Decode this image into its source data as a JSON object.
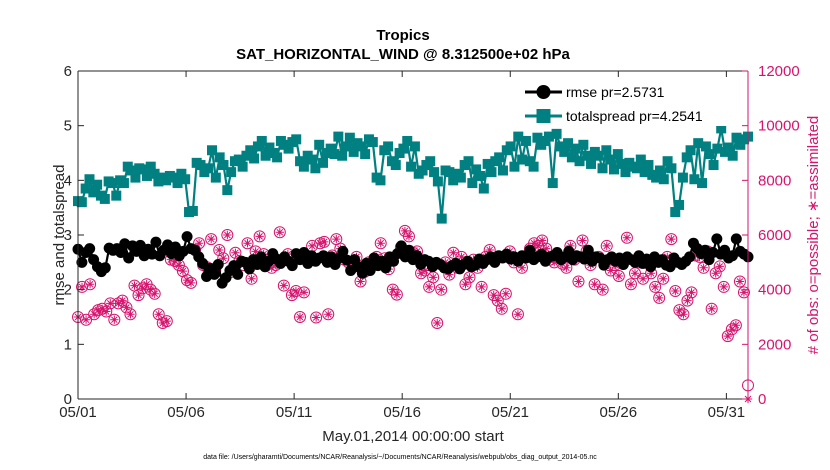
{
  "chart_data": {
    "type": "line",
    "title": "Tropics",
    "subtitle": "SAT_HORIZONTAL_WIND @ 8.312500e+02 hPa",
    "xlabel": "May.01,2014 00:00:00 start",
    "ylabel": "rmse and totalspread",
    "y2label": "# of obs: o=possible; ∗=assimilated",
    "footer": "data file: /Users/gharamti/Documents/NCAR/Reanalysis/~/Documents/NCAR/Reanalysis/webpub/obs_diag_output_2014-05.nc",
    "xlim": [
      0,
      31
    ],
    "ylim": [
      0,
      6
    ],
    "y2lim": [
      0,
      12000
    ],
    "x_ticks": [
      {
        "value": 0,
        "label": "05/01"
      },
      {
        "value": 5,
        "label": "05/06"
      },
      {
        "value": 10,
        "label": "05/11"
      },
      {
        "value": 15,
        "label": "05/16"
      },
      {
        "value": 20,
        "label": "05/21"
      },
      {
        "value": 25,
        "label": "05/26"
      },
      {
        "value": 30,
        "label": "05/31"
      }
    ],
    "y_ticks": [
      {
        "value": 0,
        "label": "0"
      },
      {
        "value": 1,
        "label": "1"
      },
      {
        "value": 2,
        "label": "2"
      },
      {
        "value": 3,
        "label": "3"
      },
      {
        "value": 4,
        "label": "4"
      },
      {
        "value": 5,
        "label": "5"
      },
      {
        "value": 6,
        "label": "6"
      }
    ],
    "y2_ticks": [
      {
        "value": 0,
        "label": "0"
      },
      {
        "value": 2000,
        "label": "2000"
      },
      {
        "value": 4000,
        "label": "4000"
      },
      {
        "value": 6000,
        "label": "6000"
      },
      {
        "value": 8000,
        "label": "8000"
      },
      {
        "value": 10000,
        "label": "10000"
      },
      {
        "value": 12000,
        "label": "12000"
      }
    ],
    "legend_position": "top-right",
    "colors": {
      "rmse": "#000000",
      "totalspread": "#008080",
      "obs": "#d6136d",
      "axis": "#262626",
      "grid": "#dcdcdc"
    },
    "series": [
      {
        "name": "rmse pr=2.5731",
        "marker": "filled-circle",
        "axis": "left",
        "values": [
          2.74,
          2.5,
          2.68,
          2.75,
          2.55,
          2.42,
          2.33,
          2.4,
          2.76,
          2.72,
          2.75,
          2.68,
          2.84,
          2.58,
          2.8,
          2.7,
          2.81,
          2.62,
          2.74,
          2.65,
          2.87,
          2.62,
          2.72,
          2.82,
          2.66,
          2.78,
          2.62,
          2.7,
          2.97,
          2.75,
          2.72,
          2.6,
          2.48,
          2.24,
          2.39,
          2.28,
          2.46,
          2.12,
          2.22,
          2.35,
          2.44,
          2.28,
          2.52,
          2.5,
          2.38,
          2.55,
          2.46,
          2.6,
          2.42,
          2.52,
          2.66,
          2.56,
          2.48,
          2.6,
          2.52,
          2.44,
          2.66,
          2.55,
          2.68,
          2.48,
          2.62,
          2.52,
          2.58,
          2.62,
          2.5,
          2.6,
          2.46,
          2.58,
          2.7,
          2.54,
          2.35,
          2.55,
          2.42,
          2.3,
          2.48,
          2.35,
          2.58,
          2.44,
          2.52,
          2.4,
          2.6,
          2.52,
          2.66,
          2.8,
          2.6,
          2.72,
          2.55,
          2.62,
          2.46,
          2.55,
          2.52,
          2.42,
          2.5,
          2.46,
          2.4,
          2.38,
          2.44,
          2.48,
          2.38,
          2.46,
          2.52,
          2.42,
          2.45,
          2.56,
          2.48,
          2.55,
          2.6,
          2.5,
          2.62,
          2.58,
          2.65,
          2.56,
          2.6,
          2.52,
          2.62,
          2.58,
          2.72,
          2.55,
          2.6,
          2.65,
          2.52,
          2.6,
          2.62,
          2.68,
          2.55,
          2.6,
          2.7,
          2.55,
          2.62,
          2.6,
          2.56,
          2.72,
          2.52,
          2.6,
          2.58,
          2.45,
          2.55,
          2.6,
          2.52,
          2.58,
          2.46,
          2.6,
          2.55,
          2.5,
          2.62,
          2.48,
          2.56,
          2.42,
          2.6,
          2.5,
          2.55,
          2.45,
          2.42,
          2.58,
          2.5,
          2.46,
          2.52,
          2.6,
          2.85,
          2.75,
          2.66,
          2.72,
          2.55,
          2.68,
          2.93,
          2.65,
          2.72,
          2.58,
          2.62,
          2.93,
          2.7,
          2.65,
          2.6
        ]
      },
      {
        "name": "totalspread pr=4.2541",
        "marker": "filled-square",
        "axis": "left",
        "values": [
          3.62,
          3.6,
          3.85,
          4.02,
          3.78,
          3.92,
          3.72,
          3.66,
          3.98,
          3.95,
          3.72,
          4.0,
          3.95,
          4.25,
          4.18,
          4.05,
          4.22,
          4.2,
          4.08,
          4.25,
          4.12,
          3.98,
          4.05,
          4.0,
          4.08,
          4.05,
          3.95,
          4.12,
          4.02,
          3.42,
          3.44,
          4.32,
          4.28,
          4.15,
          4.22,
          4.55,
          4.05,
          4.42,
          4.28,
          3.82,
          4.15,
          4.35,
          4.38,
          4.25,
          4.45,
          4.55,
          4.4,
          4.62,
          4.72,
          4.45,
          4.6,
          4.5,
          4.42,
          4.72,
          4.65,
          4.58,
          4.7,
          4.75,
          4.35,
          4.25,
          4.45,
          4.38,
          4.22,
          4.65,
          4.32,
          4.5,
          4.58,
          4.48,
          4.8,
          4.45,
          4.62,
          4.78,
          4.52,
          4.68,
          4.62,
          4.48,
          4.75,
          4.7,
          4.05,
          4.0,
          4.55,
          4.62,
          4.35,
          4.28,
          4.5,
          4.58,
          4.72,
          4.25,
          4.62,
          4.12,
          4.18,
          4.28,
          4.35,
          4.15,
          3.98,
          3.3,
          4.18,
          4.15,
          4.0,
          4.12,
          4.05,
          4.28,
          4.35,
          3.95,
          4.2,
          4.08,
          3.85,
          4.3,
          4.15,
          4.35,
          4.42,
          4.18,
          4.55,
          4.62,
          4.25,
          4.8,
          4.38,
          4.72,
          4.35,
          4.25,
          4.78,
          4.65,
          4.72,
          4.8,
          3.95,
          4.85,
          4.62,
          4.52,
          4.68,
          4.42,
          4.58,
          4.35,
          4.65,
          4.45,
          4.3,
          4.52,
          4.45,
          4.22,
          4.55,
          4.38,
          4.2,
          4.48,
          4.3,
          4.15,
          4.32,
          4.25,
          4.22,
          4.38,
          4.15,
          4.28,
          4.1,
          4.05,
          4.18,
          4.02,
          4.35,
          4.22,
          3.42,
          3.55,
          4.05,
          4.42,
          4.55,
          4.02,
          4.68,
          3.95,
          4.62,
          4.48,
          4.28,
          4.58,
          4.95,
          4.52,
          4.6,
          4.45,
          4.78,
          4.65,
          4.75,
          4.8
        ]
      }
    ],
    "obs_series": [
      {
        "name": "possible",
        "marker": "open-circle",
        "axis": "right",
        "values": [
          3000,
          4100,
          2900,
          4200,
          3100,
          3250,
          3300,
          3200,
          3500,
          2900,
          3500,
          3600,
          3350,
          3100,
          4150,
          3800,
          4050,
          4200,
          4000,
          3850,
          3100,
          2780,
          2850,
          5100,
          5050,
          4900,
          4680,
          4350,
          4250,
          5450,
          5700,
          4900,
          4820,
          5850,
          4700,
          5450,
          5150,
          6000,
          4650,
          5350,
          5050,
          4900,
          5700,
          4400,
          5400,
          5950,
          5300,
          5100,
          4800,
          4900,
          6100,
          4150,
          5300,
          3800,
          3950,
          3000,
          3900,
          5150,
          5600,
          2980,
          5700,
          5750,
          3100,
          5250,
          5850,
          5500,
          5100,
          5000,
          4800,
          5200,
          4300,
          4650,
          5000,
          4900,
          5200,
          5700,
          5150,
          4750,
          4000,
          3820,
          5550,
          6150,
          5950,
          5350,
          5400,
          4600,
          4700,
          4100,
          4450,
          2780,
          4000,
          5000,
          4550,
          5350,
          4800,
          5200,
          4200,
          4450,
          5100,
          4800,
          4100,
          5200,
          5450,
          3800,
          3600,
          3300,
          3850,
          5400,
          5000,
          3100,
          4800,
          5200,
          5500,
          5700,
          5600,
          5800,
          5500,
          5100,
          5000,
          5200,
          4950,
          4800,
          5600,
          5100,
          4300,
          5800,
          5400,
          4900,
          4200,
          5200,
          4000,
          5600,
          4700,
          4900,
          4500,
          4950,
          5900,
          4200,
          4600,
          5000,
          4400,
          5000,
          4600,
          4100,
          3700,
          4400,
          5200,
          5850,
          3950,
          3250,
          3100,
          3600,
          3900,
          5250,
          5200,
          4800,
          5400,
          3300,
          4600,
          4850,
          4100,
          2300,
          2550,
          2700,
          4300,
          3900,
          500
        ]
      },
      {
        "name": "assimilated",
        "marker": "asterisk",
        "axis": "right",
        "values": [
          3000,
          4100,
          2900,
          4200,
          3100,
          3250,
          3300,
          3200,
          3500,
          2900,
          3500,
          3600,
          3350,
          3100,
          4150,
          3800,
          4050,
          4200,
          4000,
          3850,
          3100,
          2780,
          2850,
          5100,
          5050,
          4900,
          4680,
          4350,
          4250,
          5450,
          5700,
          4900,
          4820,
          5850,
          4700,
          5450,
          5150,
          6000,
          4650,
          5350,
          5050,
          4900,
          5700,
          4400,
          5400,
          5950,
          5300,
          5100,
          4800,
          4900,
          6100,
          4150,
          5300,
          3800,
          3950,
          3000,
          3900,
          5150,
          5600,
          2980,
          5700,
          5750,
          3100,
          5250,
          5850,
          5500,
          5100,
          5000,
          4800,
          5200,
          4300,
          4650,
          5000,
          4900,
          5200,
          5700,
          5150,
          4750,
          4000,
          3820,
          5550,
          6150,
          5950,
          5350,
          5400,
          4600,
          4700,
          4100,
          4450,
          2780,
          4000,
          5000,
          4550,
          5350,
          4800,
          5200,
          4200,
          4450,
          5100,
          4800,
          4100,
          5200,
          5450,
          3800,
          3600,
          3300,
          3850,
          5400,
          5000,
          3100,
          4800,
          5200,
          5500,
          5700,
          5600,
          5800,
          5500,
          5100,
          5000,
          5200,
          4950,
          4800,
          5600,
          5100,
          4300,
          5800,
          5400,
          4900,
          4200,
          5200,
          4000,
          5600,
          4700,
          4900,
          4500,
          4950,
          5900,
          4200,
          4600,
          5000,
          4400,
          5000,
          4600,
          4100,
          3700,
          4400,
          5200,
          5850,
          3950,
          3250,
          3100,
          3600,
          3900,
          5250,
          5200,
          4800,
          5400,
          3300,
          4600,
          4850,
          4100,
          2300,
          2550,
          2700,
          4300,
          3900,
          0
        ]
      }
    ]
  }
}
